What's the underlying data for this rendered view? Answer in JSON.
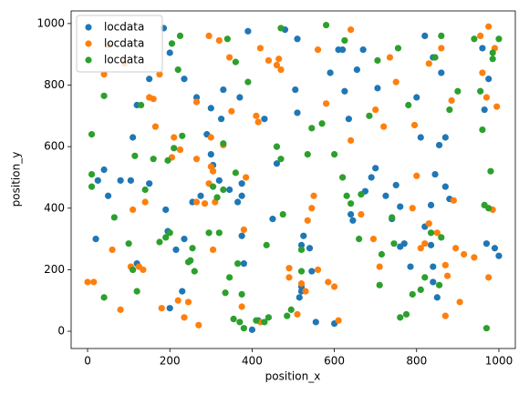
{
  "chart_data": {
    "type": "scatter",
    "xlabel": "position_x",
    "ylabel": "position_y",
    "xlim": [
      -40,
      1040
    ],
    "ylim": [
      -56,
      1041
    ],
    "xticks": [
      0,
      200,
      400,
      600,
      800,
      1000
    ],
    "yticks": [
      0,
      200,
      400,
      600,
      800,
      1000
    ],
    "legend": "upper left",
    "series": [
      {
        "name": "locdata",
        "color": "#1f77b4",
        "x": [
          185,
          200,
          390,
          480,
          510,
          235,
          150,
          120,
          265,
          330,
          370,
          325,
          300,
          290,
          110,
          105,
          40,
          25,
          20,
          50,
          80,
          110,
          120,
          150,
          190,
          195,
          215,
          235,
          230,
          200,
          255,
          275,
          300,
          305,
          320,
          345,
          375,
          375,
          365,
          375,
          380,
          400,
          415,
          450,
          430,
          460,
          505,
          510,
          525,
          520,
          540,
          520,
          515,
          520,
          545,
          555,
          600,
          590,
          610,
          620,
          625,
          635,
          640,
          645,
          655,
          670,
          675,
          690,
          700,
          705,
          725,
          750,
          740,
          760,
          760,
          770,
          785,
          800,
          810,
          820,
          820,
          835,
          835,
          840,
          845,
          855,
          870,
          870,
          880,
          840,
          840,
          850,
          860,
          970,
          975,
          990,
          1000,
          960,
          965
        ],
        "y": [
          985,
          905,
          975,
          980,
          950,
          820,
          820,
          735,
          760,
          785,
          760,
          690,
          725,
          640,
          630,
          490,
          525,
          490,
          300,
          440,
          490,
          200,
          220,
          480,
          395,
          325,
          265,
          300,
          130,
          75,
          420,
          440,
          575,
          540,
          490,
          460,
          480,
          440,
          420,
          310,
          220,
          5,
          35,
          365,
          690,
          545,
          785,
          710,
          310,
          280,
          270,
          130,
          110,
          145,
          195,
          30,
          25,
          840,
          915,
          915,
          780,
          690,
          380,
          360,
          850,
          915,
          455,
          500,
          530,
          790,
          440,
          475,
          365,
          405,
          275,
          285,
          210,
          760,
          630,
          960,
          340,
          410,
          280,
          890,
          510,
          605,
          630,
          470,
          430,
          210,
          160,
          110,
          840,
          285,
          820,
          270,
          245,
          920,
          720
        ]
      },
      {
        "name": "locdata",
        "color": "#ff7f0e",
        "x": [
          40,
          50,
          90,
          0,
          15,
          60,
          80,
          110,
          105,
          125,
          135,
          140,
          150,
          160,
          165,
          175,
          180,
          210,
          205,
          220,
          225,
          235,
          245,
          265,
          265,
          270,
          265,
          285,
          295,
          305,
          300,
          300,
          305,
          310,
          295,
          320,
          330,
          345,
          350,
          375,
          380,
          385,
          410,
          415,
          420,
          420,
          440,
          460,
          470,
          465,
          490,
          490,
          510,
          520,
          530,
          535,
          545,
          550,
          560,
          560,
          580,
          585,
          600,
          610,
          640,
          640,
          665,
          695,
          700,
          710,
          720,
          735,
          750,
          790,
          800,
          795,
          810,
          820,
          830,
          830,
          850,
          860,
          870,
          870,
          875,
          885,
          890,
          895,
          905,
          915,
          940,
          955,
          960,
          975,
          975,
          985,
          990,
          995,
          970
        ],
        "y": [
          835,
          930,
          870,
          160,
          160,
          265,
          70,
          395,
          210,
          210,
          200,
          420,
          760,
          755,
          665,
          835,
          75,
          630,
          565,
          100,
          590,
          45,
          95,
          560,
          745,
          20,
          420,
          415,
          480,
          265,
          630,
          535,
          520,
          420,
          960,
          945,
          605,
          890,
          715,
          80,
          330,
          500,
          700,
          680,
          920,
          30,
          880,
          865,
          850,
          885,
          175,
          205,
          55,
          155,
          130,
          360,
          400,
          440,
          200,
          915,
          740,
          160,
          145,
          35,
          980,
          620,
          380,
          300,
          720,
          210,
          665,
          890,
          810,
          400,
          505,
          670,
          270,
          285,
          350,
          870,
          320,
          920,
          215,
          50,
          180,
          750,
          425,
          270,
          95,
          250,
          240,
          960,
          840,
          990,
          175,
          395,
          920,
          730,
          760
        ]
      },
      {
        "name": "locdata",
        "color": "#2ca02c",
        "x": [
          10,
          10,
          10,
          40,
          40,
          65,
          100,
          110,
          120,
          115,
          130,
          140,
          160,
          175,
          190,
          200,
          195,
          205,
          210,
          220,
          225,
          230,
          245,
          250,
          255,
          260,
          295,
          305,
          315,
          320,
          330,
          330,
          335,
          340,
          345,
          355,
          360,
          365,
          375,
          360,
          370,
          380,
          390,
          410,
          430,
          435,
          440,
          460,
          470,
          470,
          475,
          485,
          495,
          520,
          520,
          535,
          545,
          570,
          580,
          600,
          620,
          625,
          630,
          640,
          660,
          665,
          685,
          705,
          710,
          715,
          740,
          745,
          755,
          760,
          775,
          780,
          790,
          810,
          820,
          835,
          845,
          855,
          860,
          860,
          880,
          900,
          940,
          955,
          960,
          965,
          970,
          975,
          980,
          985,
          985,
          1000
        ],
        "y": [
          510,
          470,
          640,
          110,
          765,
          370,
          285,
          200,
          130,
          570,
          735,
          460,
          560,
          290,
          305,
          320,
          555,
          935,
          595,
          850,
          960,
          635,
          225,
          230,
          270,
          195,
          320,
          470,
          435,
          320,
          460,
          610,
          125,
          950,
          175,
          40,
          515,
          220,
          120,
          875,
          30,
          10,
          810,
          35,
          30,
          280,
          45,
          600,
          985,
          560,
          380,
          50,
          70,
          195,
          265,
          575,
          660,
          675,
          995,
          575,
          500,
          945,
          440,
          415,
          300,
          445,
          700,
          880,
          150,
          250,
          370,
          285,
          920,
          45,
          55,
          735,
          120,
          135,
          175,
          320,
          890,
          150,
          960,
          305,
          720,
          780,
          950,
          780,
          655,
          410,
          10,
          400,
          520,
          905,
          885,
          950
        ]
      }
    ]
  }
}
